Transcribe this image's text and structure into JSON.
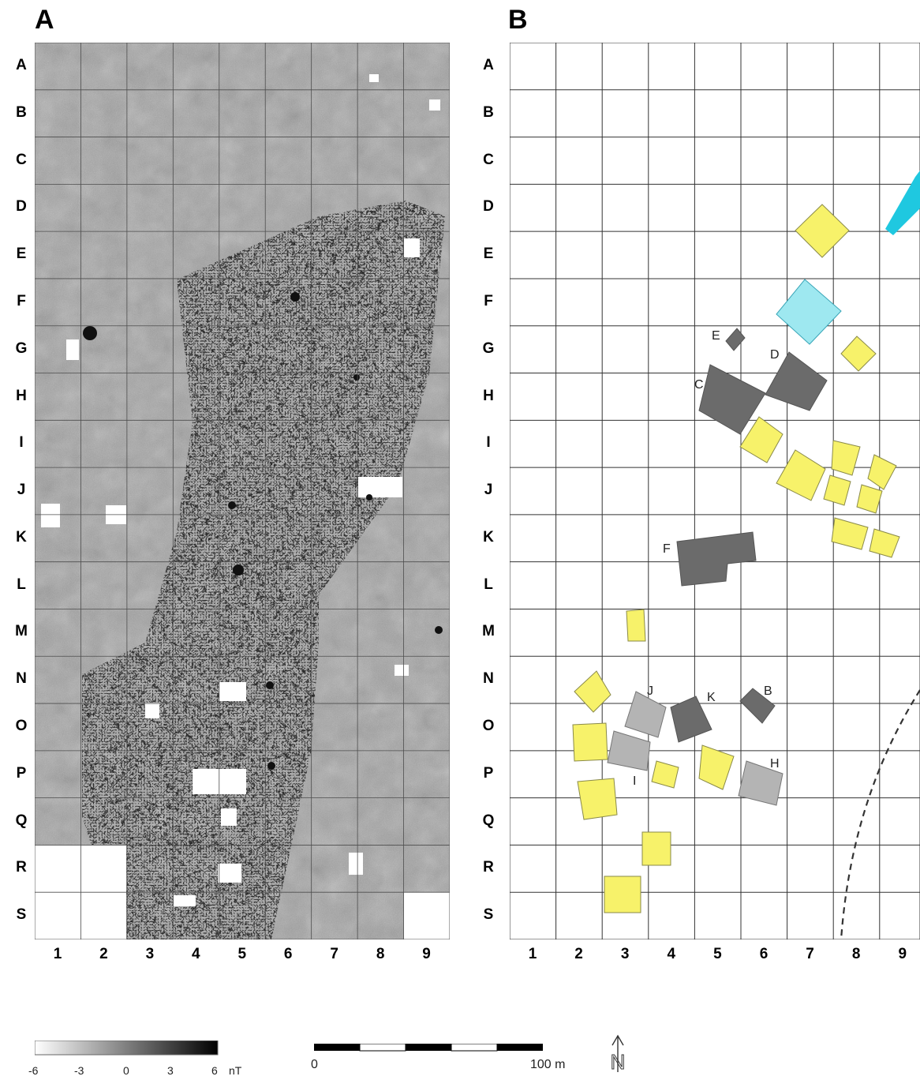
{
  "panel_a": {
    "label": "A"
  },
  "panel_b": {
    "label": "B"
  },
  "grid": {
    "rows": [
      "A",
      "B",
      "C",
      "D",
      "E",
      "F",
      "G",
      "H",
      "I",
      "J",
      "K",
      "L",
      "M",
      "N",
      "O",
      "P",
      "Q",
      "R",
      "S"
    ],
    "cols": [
      "1",
      "2",
      "3",
      "4",
      "5",
      "6",
      "7",
      "8",
      "9"
    ]
  },
  "legend": {
    "ticks": [
      "-6",
      "-3",
      "0",
      "3",
      "6"
    ],
    "unit": "nT"
  },
  "scale_bar": {
    "start_label": "0",
    "end_label": "100 m"
  },
  "north_arrow": {
    "label": "N"
  },
  "features": {
    "labels": [
      "B",
      "C",
      "D",
      "E",
      "F",
      "H",
      "I",
      "J",
      "K"
    ]
  },
  "colors": {
    "yellow": "#f7f26a",
    "dark_gray": "#6b6b6b",
    "light_gray": "#b4b4b4",
    "cyan": "#9ee8f0",
    "cyan_dark": "#1fc8e0",
    "grid_line": "#3a3a3a"
  }
}
